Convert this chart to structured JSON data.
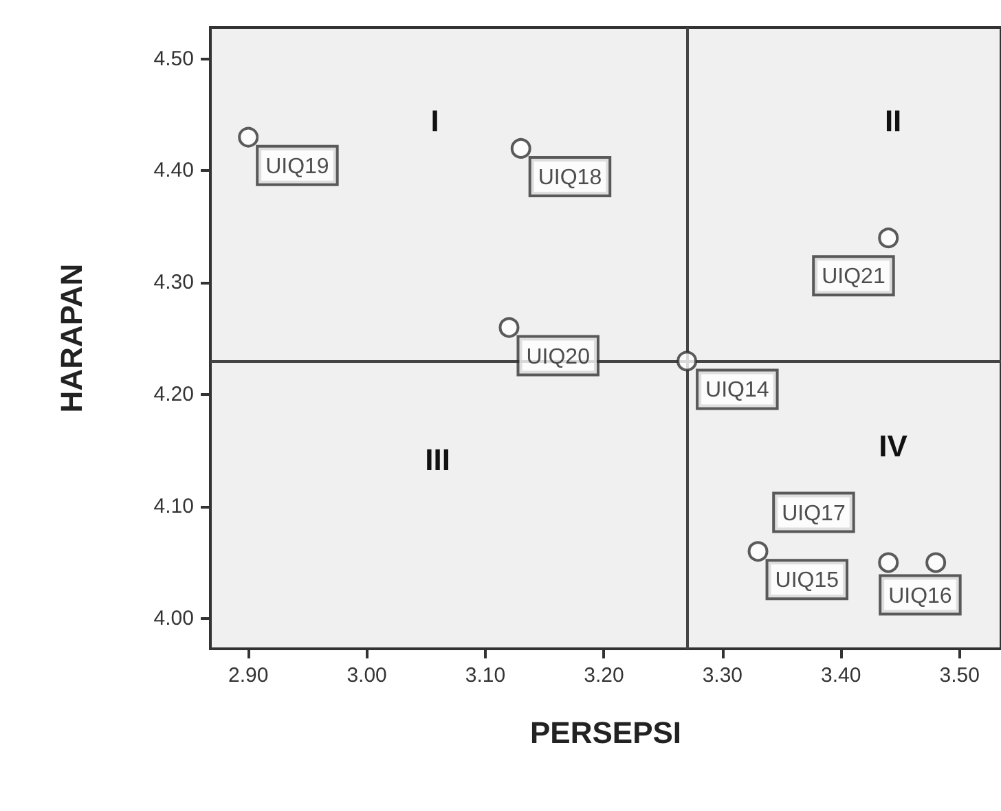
{
  "chart_data": {
    "type": "scatter",
    "xlabel": "PERSEPSI",
    "ylabel": "HARAPAN",
    "x": [
      2.9,
      3.13,
      3.12,
      3.27,
      3.44,
      3.33,
      3.44,
      3.48
    ],
    "values": [
      4.43,
      4.42,
      4.26,
      4.23,
      4.34,
      4.06,
      4.05,
      4.05
    ],
    "value_labels": [
      "UIQ19",
      "UIQ18",
      "UIQ20",
      "UIQ14",
      "UIQ21",
      "UIQ15",
      "UIQ17",
      "UIQ16"
    ],
    "color": "#333333",
    "marker": "circle",
    "grid": false,
    "xlim": [
      2.868,
      3.535
    ],
    "xticks": [
      {
        "value": 2.9,
        "label": "2.90"
      },
      {
        "value": 3.0,
        "label": "3.00"
      },
      {
        "value": 3.1,
        "label": "3.10"
      },
      {
        "value": 3.2,
        "label": "3.20"
      },
      {
        "value": 3.3,
        "label": "3.30"
      },
      {
        "value": 3.4,
        "label": "3.40"
      },
      {
        "value": 3.5,
        "label": "3.50"
      }
    ],
    "ylim": [
      3.973,
      4.528
    ],
    "yticks": [
      {
        "value": 4.0,
        "label": "4.00"
      },
      {
        "value": 4.1,
        "label": "4.10"
      },
      {
        "value": 4.2,
        "label": "4.20"
      },
      {
        "value": 4.3,
        "label": "4.30"
      },
      {
        "value": 4.4,
        "label": "4.40"
      },
      {
        "value": 4.5,
        "label": "4.50"
      }
    ],
    "ref_lines": [
      {
        "axis": "y",
        "value": 4.23,
        "color": "#444444"
      },
      {
        "axis": "x",
        "value": 3.27,
        "color": "#444444"
      }
    ],
    "annotations": [
      "I",
      "II",
      "III",
      "IV"
    ]
  }
}
